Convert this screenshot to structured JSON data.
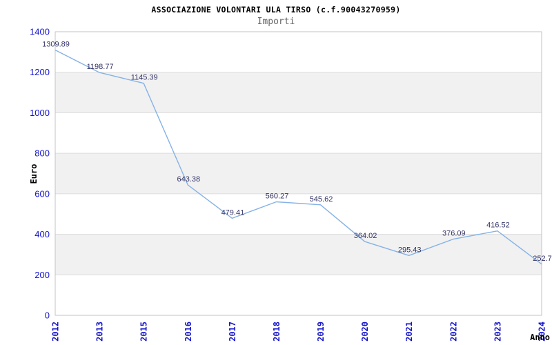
{
  "header": {
    "title": "ASSOCIAZIONE VOLONTARI ULA TIRSO (c.f.90043270959)",
    "subtitle": "Importi"
  },
  "chart_data": {
    "type": "line",
    "title": "ASSOCIAZIONE VOLONTARI ULA TIRSO (c.f.90043270959)",
    "subtitle": "Importi",
    "xlabel": "Anno",
    "ylabel": "Euro",
    "categories": [
      "2012",
      "2013",
      "2015",
      "2016",
      "2017",
      "2018",
      "2019",
      "2020",
      "2021",
      "2022",
      "2023",
      "2024"
    ],
    "values": [
      1309.89,
      1198.77,
      1145.39,
      643.38,
      479.41,
      560.27,
      545.62,
      364.02,
      295.43,
      376.09,
      416.52,
      252.7
    ],
    "point_labels": [
      "1309.89",
      "1198.77",
      "1145.39",
      "643.38",
      "479.41",
      "560.27",
      "545.62",
      "364.02",
      "295.43",
      "376.09",
      "416.52",
      "252.7"
    ],
    "ylim": [
      0,
      1400
    ],
    "ytick_step": 200,
    "ytick_labels": [
      "0",
      "200",
      "400",
      "600",
      "800",
      "1000",
      "1200",
      "1400"
    ],
    "grid": true,
    "legend": "none",
    "colors": {
      "line": "#85b2e6",
      "band": "#f1f1f1",
      "gridline": "#dcdcdc",
      "plot_border": "#c3c3c3",
      "tick_label": "#1414cc",
      "point_label": "#333366",
      "title": "#000000",
      "subtitle": "#666666",
      "axis_label": "#000000",
      "background": "#ffffff"
    }
  }
}
